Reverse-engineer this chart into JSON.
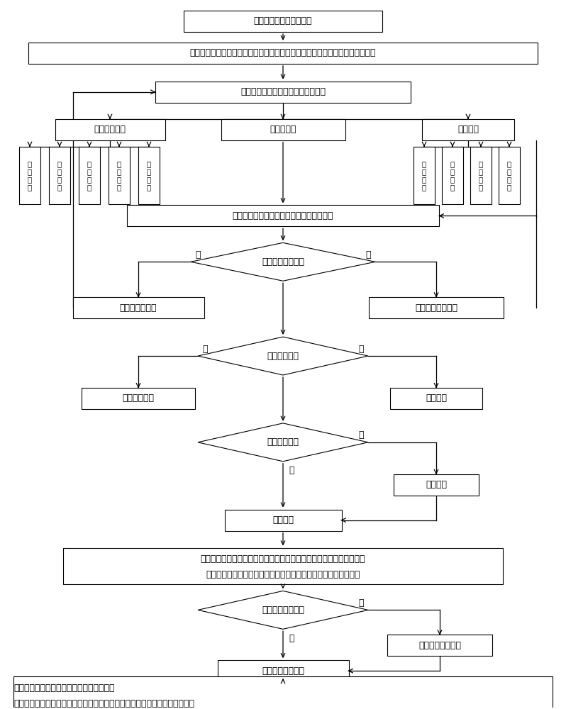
{
  "bg_color": "#ffffff",
  "nodes": {
    "start": {
      "text": "打开开关按键，测量体重"
    },
    "db1": {
      "text": "数据管理系统建立历史体重数据库；同时处理器控制二维码生成装置生成二维码"
    },
    "init": {
      "text": "打开移动终端应用，并进行重始化重"
    },
    "personal": {
      "text": "个人体重管理"
    },
    "scan": {
      "text": "扫描二维码"
    },
    "feedback": {
      "text": "系统反馈"
    },
    "sub_left": [
      "上次结果",
      "结果汇总",
      "健康分析",
      "健康建议",
      "专家咨询"
    ],
    "sub_right": [
      "附近称体",
      "联系合作",
      "称称数据",
      "称称回答"
    ],
    "get_result": {
      "text": "获取测量结果，并与数据管理系统账号绑定"
    },
    "d1": {
      "text": "退出移动终端应用"
    },
    "back": {
      "text": "返回初始化界面"
    },
    "end_meas": {
      "text": "结束本次体重测量"
    },
    "d2": {
      "text": "触发开关按键"
    },
    "standby1": {
      "text": "处于待机状态"
    },
    "close_scale": {
      "text": "关闭称体"
    },
    "d3": {
      "text": "处于待机状态"
    },
    "open_scale": {
      "text": "打开称体"
    },
    "measure": {
      "text": "测量体重"
    },
    "db2_line1": {
      "text": "数据管理系统对本次结果与历史体重数据进行比对，数据管理系统建立"
    },
    "db2_line2": {
      "text": "新的历史体重数据库；同时处理器控制二维码生成装置生成二维码"
    },
    "d4": {
      "text": "移动终端应用退出"
    },
    "open_app": {
      "text": "打开移动终端应用"
    },
    "enter_app": {
      "text": "进入移动终端应用"
    },
    "final_line1": {
      "text": "扫描二维码，移动终端应用获取测量结果，"
    },
    "final_line2": {
      "text": "移动终端应用可以通过网络获取数据管理系统的信息并通过界面显示信息内容"
    }
  },
  "labels": {
    "no": "否",
    "yes": "是"
  }
}
